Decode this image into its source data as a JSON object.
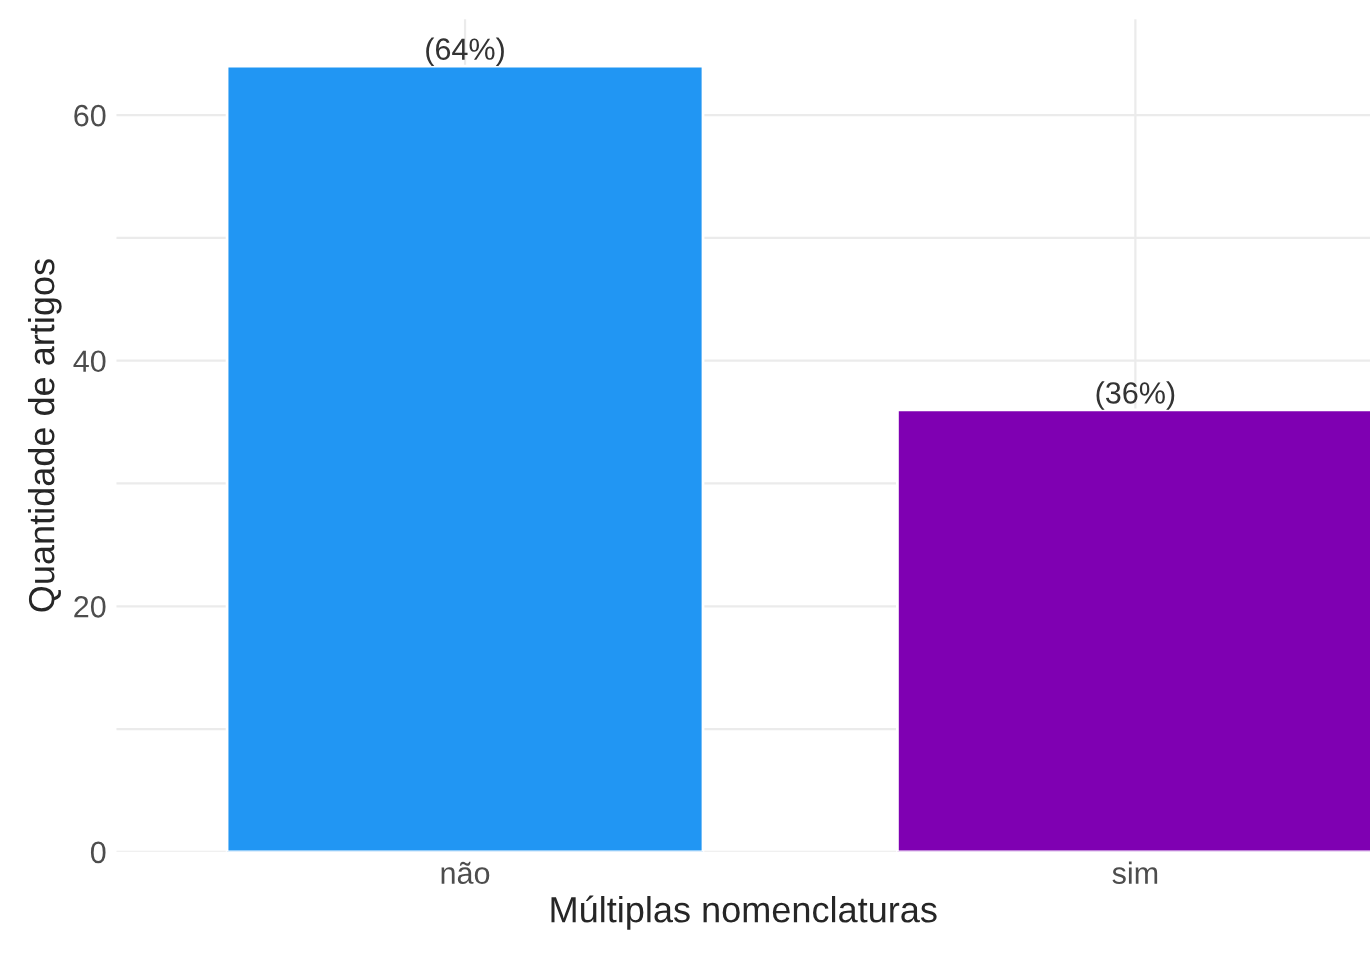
{
  "chart_data": {
    "type": "bar",
    "xlabel": "Múltiplas nomenclaturas",
    "ylabel": "Quantidade de artigos",
    "categories": [
      "não",
      "sim"
    ],
    "values": [
      64,
      36
    ],
    "colors": [
      "#2196f3",
      "#7f00b2"
    ],
    "value_labels": [
      "(64%)",
      "(36%)"
    ],
    "ylim": [
      0,
      67.8
    ],
    "yticks": [
      0,
      {
        "value": 10,
        "label": null
      },
      20,
      {
        "value": 30,
        "label": null
      },
      40,
      {
        "value": 50,
        "label": null
      },
      60
    ],
    "grid": true
  }
}
